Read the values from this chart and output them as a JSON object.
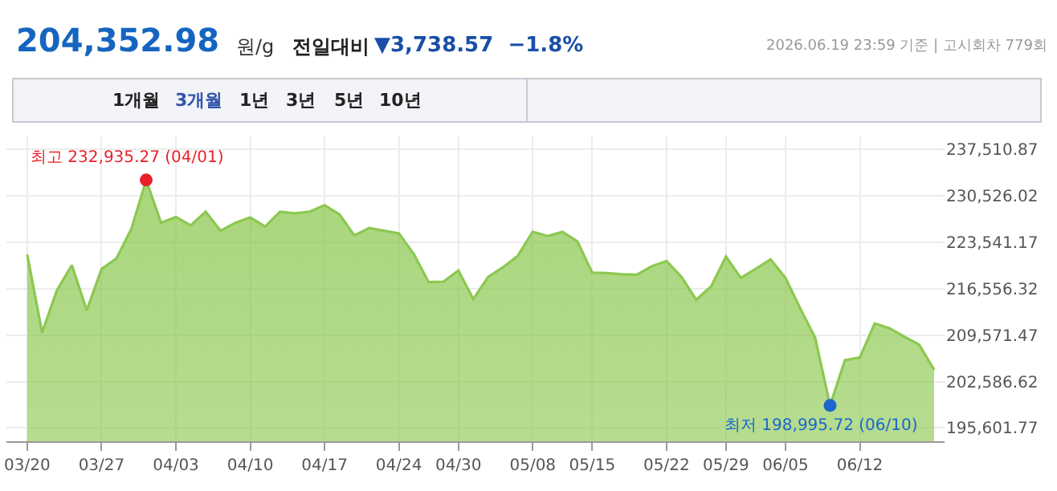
{
  "chart_data": {
    "type": "area",
    "title": "204,352.98",
    "annotations": [
      "원/g",
      "전일대비",
      "▼3,738.57  −1.8%",
      "2026.06.19 23:59 기준 | 고시회차 779회",
      "1개월",
      "3개월",
      "1년",
      "3년",
      "5년",
      "10년",
      "최고 232,935.27 (04/01)",
      "최저 198,995.72 (06/10)"
    ],
    "categories": [
      "03/20",
      null,
      null,
      null,
      null,
      "03/27",
      null,
      null,
      null,
      null,
      "04/03",
      null,
      null,
      null,
      null,
      "04/10",
      null,
      null,
      null,
      null,
      "04/17",
      null,
      null,
      null,
      null,
      "04/24",
      null,
      null,
      null,
      "04/30",
      null,
      null,
      null,
      null,
      "05/08",
      null,
      null,
      null,
      "05/15",
      null,
      null,
      null,
      null,
      "05/22",
      null,
      null,
      null,
      "05/29",
      null,
      null,
      null,
      "06/05",
      null,
      null,
      null,
      null,
      "06/12",
      null,
      null,
      null,
      null,
      null
    ],
    "series": [
      {
        "color": "#8cc850",
        "marker": "none",
        "values": [
          221700,
          209970,
          216356,
          220108,
          213323,
          219549,
          221146,
          225536,
          232935.27,
          226494,
          227373,
          226095,
          228171,
          225297,
          226494,
          227293,
          225936,
          228171,
          227931,
          228171,
          229129,
          227772,
          224579,
          225696,
          225297,
          224898,
          221785,
          217553,
          217633,
          219310,
          214999,
          218352,
          219789,
          221545,
          225137,
          224499,
          225137,
          223700,
          218990,
          218910,
          218751,
          218671,
          219948,
          220747,
          218352,
          214919,
          216915,
          221385,
          218192,
          219549,
          220986,
          218192,
          213562,
          209171,
          198995.72,
          205819,
          206218,
          211327,
          210608,
          209331,
          208134,
          204352.98
        ]
      },
      {
        "type": "scatter",
        "marker": "circle",
        "color": "#e8202a",
        "values": [
          null,
          null,
          null,
          null,
          null,
          null,
          null,
          null,
          232935.27,
          null,
          null,
          null,
          null,
          null,
          null,
          null,
          null,
          null,
          null,
          null,
          null,
          null,
          null,
          null,
          null,
          null,
          null,
          null,
          null,
          null,
          null,
          null,
          null,
          null,
          null,
          null,
          null,
          null,
          null,
          null,
          null,
          null,
          null,
          null,
          null,
          null,
          null,
          null,
          null,
          null,
          null,
          null,
          null,
          null,
          null,
          null,
          null,
          null,
          null,
          null,
          null,
          null
        ]
      },
      {
        "type": "scatter",
        "marker": "circle",
        "color": "#1a66cc",
        "values": [
          null,
          null,
          null,
          null,
          null,
          null,
          null,
          null,
          null,
          null,
          null,
          null,
          null,
          null,
          null,
          null,
          null,
          null,
          null,
          null,
          null,
          null,
          null,
          null,
          null,
          null,
          null,
          null,
          null,
          null,
          null,
          null,
          null,
          null,
          null,
          null,
          null,
          null,
          null,
          null,
          null,
          null,
          null,
          null,
          null,
          null,
          null,
          null,
          null,
          null,
          null,
          null,
          null,
          null,
          198995.72,
          null,
          null,
          null,
          null,
          null,
          null,
          null
        ]
      }
    ],
    "ylim": [
      193600,
      239500
    ],
    "yticks": [
      {
        "value": 195601.77,
        "label": "195,601.77"
      },
      {
        "value": 202586.62,
        "label": "202,586.62"
      },
      {
        "value": 209571.47,
        "label": "209,571.47"
      },
      {
        "value": 216556.32,
        "label": "216,556.32"
      },
      {
        "value": 223541.17,
        "label": "223,541.17"
      },
      {
        "value": 230526.02,
        "label": "230,526.02"
      },
      {
        "value": 237510.87,
        "label": "237,510.87"
      }
    ],
    "grid": true,
    "line_style": "solid"
  }
}
